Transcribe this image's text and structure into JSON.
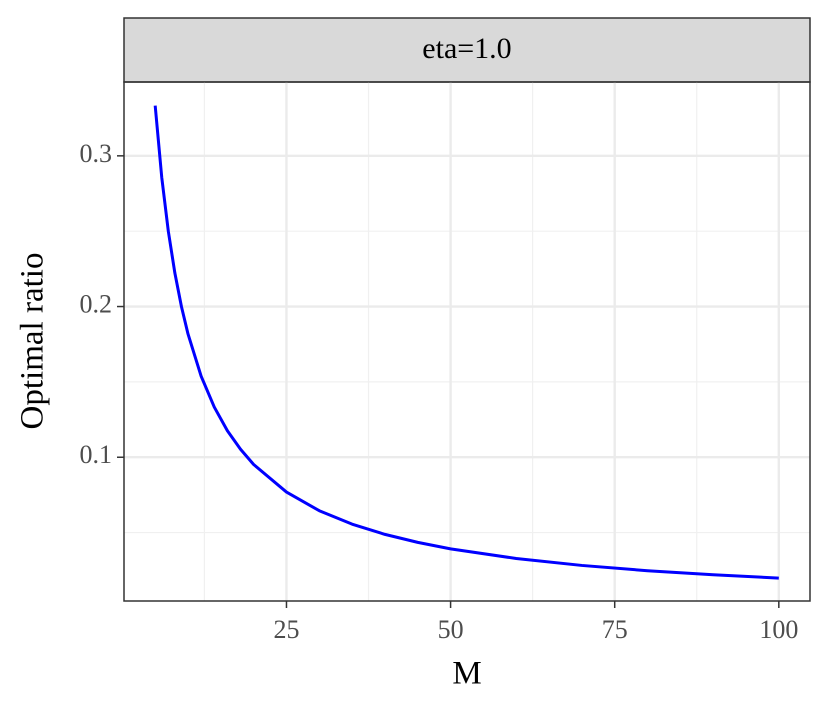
{
  "chart_data": {
    "type": "line",
    "strip_label": "eta=1.0",
    "xlabel": "M",
    "ylabel": "Optimal ratio",
    "x": [
      5,
      6,
      7,
      8,
      9,
      10,
      12,
      14,
      16,
      18,
      20,
      25,
      30,
      35,
      40,
      45,
      50,
      60,
      70,
      80,
      90,
      100
    ],
    "series": [
      {
        "color": "#0000ff",
        "values": [
          0.3333,
          0.2857,
          0.25,
          0.2222,
          0.2,
          0.1818,
          0.1538,
          0.1333,
          0.1176,
          0.1053,
          0.0952,
          0.0769,
          0.0645,
          0.0556,
          0.0488,
          0.0435,
          0.0392,
          0.0328,
          0.0282,
          0.0247,
          0.022,
          0.0198
        ]
      }
    ],
    "xlim": [
      0.25,
      104.75
    ],
    "ylim": [
      0.0046,
      0.349
    ],
    "xticks": [
      25,
      50,
      75,
      100
    ],
    "yticks": [
      0.1,
      0.2,
      0.3
    ],
    "x_minor_grid": [
      12.5,
      37.5,
      62.5,
      87.5
    ],
    "y_minor_grid": [
      0.05,
      0.15,
      0.25,
      0.35
    ],
    "grid": true
  }
}
